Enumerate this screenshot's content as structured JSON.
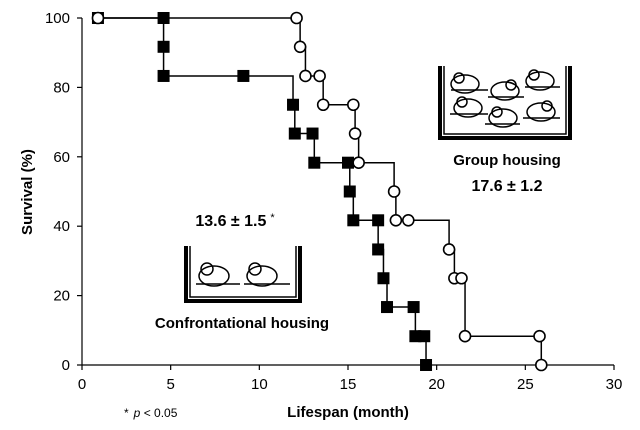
{
  "chart_data": {
    "type": "line",
    "style": "step",
    "xlabel": "Lifespan (month)",
    "ylabel": "Survival (%)",
    "xlim": [
      0,
      30
    ],
    "ylim": [
      0,
      100
    ],
    "xticks": [
      "0",
      "5",
      "10",
      "15",
      "20",
      "25",
      "30"
    ],
    "yticks": [
      "0",
      "20",
      "40",
      "60",
      "80",
      "100"
    ],
    "grid": false,
    "series": [
      {
        "group": "confrontational",
        "marker": "filled-square",
        "color": "#000000",
        "x": [
          0.9,
          4.6,
          4.6,
          4.6,
          9.1,
          11.9,
          12.0,
          13.0,
          13.1,
          15.0,
          15.1,
          15.3,
          16.7,
          16.7,
          17.0,
          17.2,
          18.7,
          18.8,
          19.3,
          19.4
        ],
        "y": [
          100,
          100,
          91.7,
          83.3,
          83.3,
          75,
          66.7,
          66.7,
          58.3,
          58.3,
          50,
          41.7,
          41.7,
          33.3,
          25,
          16.7,
          16.7,
          8.3,
          8.3,
          0
        ]
      },
      {
        "group": "group",
        "marker": "open-circle",
        "color": "#000000",
        "x": [
          0.9,
          12.1,
          12.3,
          12.6,
          13.4,
          13.6,
          15.3,
          15.4,
          15.6,
          17.6,
          17.7,
          18.4,
          20.7,
          21.0,
          21.4,
          21.6,
          25.8,
          25.9
        ],
        "y": [
          100,
          100,
          91.7,
          83.3,
          83.3,
          75,
          75,
          66.7,
          58.3,
          50,
          41.7,
          41.7,
          33.3,
          25,
          25,
          8.3,
          8.3,
          0
        ]
      }
    ],
    "annotations": {
      "group_mean": "17.6 ± 1.2",
      "group_label": "Group housing",
      "confront_mean": "13.6 ± 1.5",
      "confront_star": "*",
      "confront_label": "Confrontational housing",
      "footnote_star": "*",
      "footnote_p": "p",
      "footnote_rest": " < 0.05"
    }
  }
}
